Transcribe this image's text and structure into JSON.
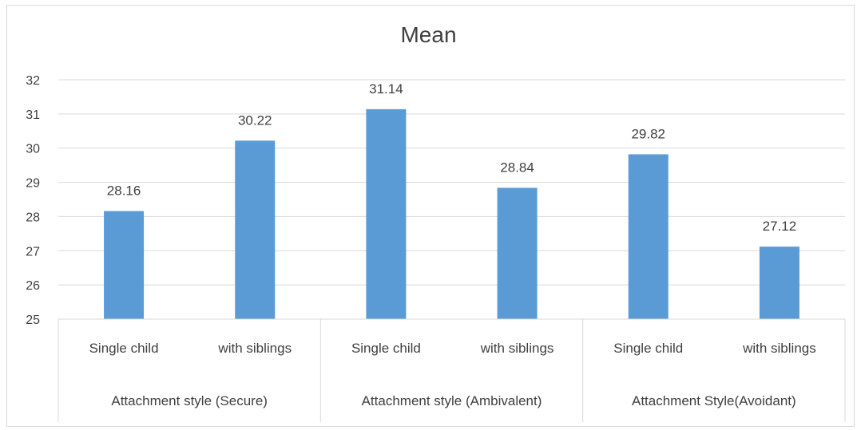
{
  "chart_data": {
    "type": "bar",
    "title": "Mean",
    "groups": [
      {
        "label": "Attachment style (Secure)",
        "categories": [
          "Single child",
          "with siblings"
        ]
      },
      {
        "label": "Attachment style (Ambivalent)",
        "categories": [
          "Single child",
          "with siblings"
        ]
      },
      {
        "label": "Attachment Style(Avoidant)",
        "categories": [
          "Single child",
          "with siblings"
        ]
      }
    ],
    "series": [
      {
        "values": [
          28.16,
          30.22,
          31.14,
          28.84,
          29.82,
          27.12
        ],
        "labels": [
          "28.16",
          "30.22",
          "31.14",
          "28.84",
          "29.82",
          "27.12"
        ]
      }
    ],
    "ylim": [
      25,
      32
    ],
    "yticks": [
      "25",
      "26",
      "27",
      "28",
      "29",
      "30",
      "31",
      "32"
    ],
    "grid": true,
    "legend": "none",
    "colors": {
      "bar": "#5b9bd5",
      "grid": "#d9d9d9",
      "text": "#404040"
    }
  }
}
